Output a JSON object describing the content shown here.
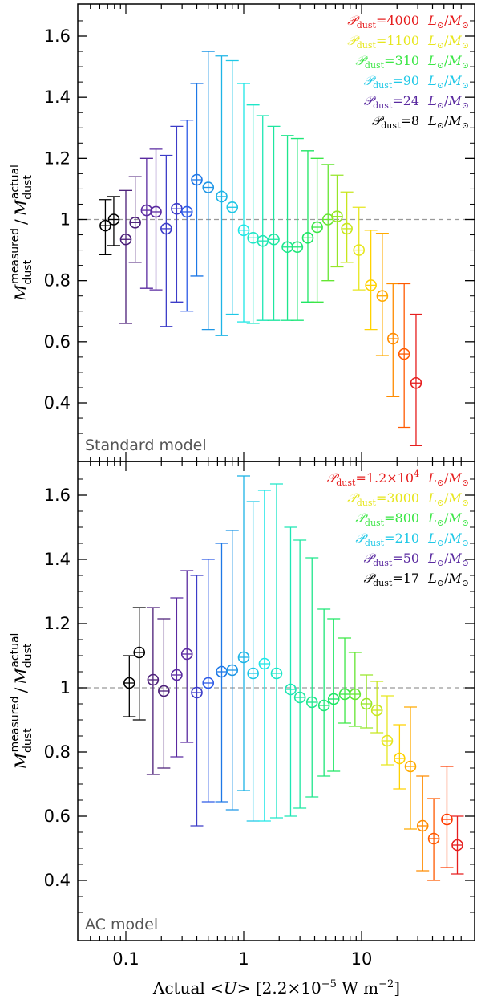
{
  "chart_data": [
    {
      "type": "scatter",
      "panel": "top",
      "panel_label": "Standard model",
      "ylabel": "M_dust^measured / M_dust^actual",
      "ylim": [
        0.22,
        1.68
      ],
      "xscale": "log",
      "xlim": [
        0.045,
        70
      ],
      "y_ticks": [
        "0.4",
        "0.6",
        "0.8",
        "1",
        "1.2",
        "1.4",
        "1.6"
      ],
      "reference_line": 1,
      "points": [
        {
          "x": 0.067,
          "y": 0.98,
          "lo": 0.885,
          "hi": 1.065,
          "color": "#000000"
        },
        {
          "x": 0.079,
          "y": 1.0,
          "lo": 0.915,
          "hi": 1.075,
          "color": "#000000"
        },
        {
          "x": 0.1,
          "y": 0.935,
          "lo": 0.66,
          "hi": 1.095,
          "color": "#4b1e78"
        },
        {
          "x": 0.12,
          "y": 0.99,
          "lo": 0.86,
          "hi": 1.14,
          "color": "#4b1e78"
        },
        {
          "x": 0.15,
          "y": 1.03,
          "lo": 0.775,
          "hi": 1.2,
          "color": "#5a2aa0"
        },
        {
          "x": 0.18,
          "y": 1.025,
          "lo": 0.77,
          "hi": 1.23,
          "color": "#5a2aa0"
        },
        {
          "x": 0.22,
          "y": 0.97,
          "lo": 0.65,
          "hi": 1.21,
          "color": "#3c3cc8"
        },
        {
          "x": 0.27,
          "y": 1.035,
          "lo": 0.73,
          "hi": 1.305,
          "color": "#3c3cc8"
        },
        {
          "x": 0.33,
          "y": 1.025,
          "lo": 0.7,
          "hi": 1.325,
          "color": "#2d5ae6"
        },
        {
          "x": 0.4,
          "y": 1.13,
          "lo": 0.815,
          "hi": 1.445,
          "color": "#1e78e6"
        },
        {
          "x": 0.5,
          "y": 1.105,
          "lo": 0.64,
          "hi": 1.55,
          "color": "#1e96e6"
        },
        {
          "x": 0.65,
          "y": 1.075,
          "lo": 0.62,
          "hi": 1.535,
          "color": "#1eb4e6"
        },
        {
          "x": 0.8,
          "y": 1.04,
          "lo": 0.69,
          "hi": 1.52,
          "color": "#1ec8e6"
        },
        {
          "x": 1.0,
          "y": 0.965,
          "lo": 0.665,
          "hi": 1.445,
          "color": "#1ee6e6"
        },
        {
          "x": 1.2,
          "y": 0.94,
          "lo": 0.66,
          "hi": 1.375,
          "color": "#1ee6c8"
        },
        {
          "x": 1.45,
          "y": 0.93,
          "lo": 0.67,
          "hi": 1.34,
          "color": "#1ee6b4"
        },
        {
          "x": 1.8,
          "y": 0.935,
          "lo": 0.67,
          "hi": 1.305,
          "color": "#1ee6a0"
        },
        {
          "x": 2.35,
          "y": 0.91,
          "lo": 0.67,
          "hi": 1.275,
          "color": "#1ee68c"
        },
        {
          "x": 2.85,
          "y": 0.91,
          "lo": 0.67,
          "hi": 1.265,
          "color": "#1ee678"
        },
        {
          "x": 3.5,
          "y": 0.94,
          "lo": 0.73,
          "hi": 1.225,
          "color": "#1ee664"
        },
        {
          "x": 4.2,
          "y": 0.975,
          "lo": 0.73,
          "hi": 1.2,
          "color": "#3ce646"
        },
        {
          "x": 5.2,
          "y": 1.0,
          "lo": 0.8,
          "hi": 1.18,
          "color": "#64e632"
        },
        {
          "x": 6.2,
          "y": 1.01,
          "lo": 0.845,
          "hi": 1.145,
          "color": "#96e628"
        },
        {
          "x": 7.5,
          "y": 0.97,
          "lo": 0.86,
          "hi": 1.09,
          "color": "#c8e61e"
        },
        {
          "x": 9.5,
          "y": 0.9,
          "lo": 0.77,
          "hi": 1.04,
          "color": "#e6e61e"
        },
        {
          "x": 12,
          "y": 0.785,
          "lo": 0.64,
          "hi": 0.965,
          "color": "#ffd200"
        },
        {
          "x": 15,
          "y": 0.75,
          "lo": 0.555,
          "hi": 0.955,
          "color": "#ffaa00"
        },
        {
          "x": 18.5,
          "y": 0.61,
          "lo": 0.42,
          "hi": 0.79,
          "color": "#ff8c00"
        },
        {
          "x": 23,
          "y": 0.56,
          "lo": 0.32,
          "hi": 0.79,
          "color": "#ff5a00"
        },
        {
          "x": 29,
          "y": 0.465,
          "lo": 0.26,
          "hi": 0.69,
          "color": "#e61e1e"
        }
      ],
      "legend": [
        {
          "value": "4000",
          "color": "#e61e1e"
        },
        {
          "value": "1100",
          "color": "#e6e61e"
        },
        {
          "value": "310",
          "color": "#3ce646"
        },
        {
          "value": "90",
          "color": "#1ec8e6"
        },
        {
          "value": "24",
          "color": "#5a2aa0"
        },
        {
          "value": "8",
          "color": "#000000"
        }
      ]
    },
    {
      "type": "scatter",
      "panel": "bottom",
      "panel_label": "AC model",
      "ylabel": "M_dust^measured / M_dust^actual",
      "ylim": [
        0.22,
        1.68
      ],
      "xscale": "log",
      "xlim": [
        0.045,
        70
      ],
      "y_ticks": [
        "0.4",
        "0.6",
        "0.8",
        "1",
        "1.2",
        "1.4",
        "1.6"
      ],
      "reference_line": 1,
      "points": [
        {
          "x": 0.107,
          "y": 1.015,
          "lo": 0.91,
          "hi": 1.1,
          "color": "#000000"
        },
        {
          "x": 0.13,
          "y": 1.11,
          "lo": 0.9,
          "hi": 1.25,
          "color": "#000000"
        },
        {
          "x": 0.17,
          "y": 1.025,
          "lo": 0.73,
          "hi": 1.25,
          "color": "#4b1e78"
        },
        {
          "x": 0.21,
          "y": 0.99,
          "lo": 0.75,
          "hi": 1.215,
          "color": "#4b1e78"
        },
        {
          "x": 0.27,
          "y": 1.04,
          "lo": 0.785,
          "hi": 1.28,
          "color": "#5a2aa0"
        },
        {
          "x": 0.33,
          "y": 1.105,
          "lo": 0.83,
          "hi": 1.365,
          "color": "#5a2aa0"
        },
        {
          "x": 0.4,
          "y": 0.985,
          "lo": 0.57,
          "hi": 1.35,
          "color": "#3c3cc8"
        },
        {
          "x": 0.5,
          "y": 1.015,
          "lo": 0.645,
          "hi": 1.4,
          "color": "#2d5ae6"
        },
        {
          "x": 0.65,
          "y": 1.05,
          "lo": 0.645,
          "hi": 1.45,
          "color": "#1e78e6"
        },
        {
          "x": 0.8,
          "y": 1.055,
          "lo": 0.62,
          "hi": 1.49,
          "color": "#1e96e6"
        },
        {
          "x": 1.0,
          "y": 1.095,
          "lo": 0.68,
          "hi": 1.66,
          "color": "#1eb4e6"
        },
        {
          "x": 1.2,
          "y": 1.045,
          "lo": 0.585,
          "hi": 1.58,
          "color": "#1ec8e6"
        },
        {
          "x": 1.5,
          "y": 1.075,
          "lo": 0.585,
          "hi": 1.615,
          "color": "#1ee6e6"
        },
        {
          "x": 1.9,
          "y": 1.045,
          "lo": 0.595,
          "hi": 1.635,
          "color": "#1ee6c8"
        },
        {
          "x": 2.5,
          "y": 0.995,
          "lo": 0.6,
          "hi": 1.5,
          "color": "#1ee6b4"
        },
        {
          "x": 3.0,
          "y": 0.97,
          "lo": 0.625,
          "hi": 1.46,
          "color": "#1ee6a0"
        },
        {
          "x": 3.8,
          "y": 0.955,
          "lo": 0.66,
          "hi": 1.405,
          "color": "#1ee68c"
        },
        {
          "x": 4.8,
          "y": 0.945,
          "lo": 0.725,
          "hi": 1.245,
          "color": "#1ee678"
        },
        {
          "x": 5.8,
          "y": 0.965,
          "lo": 0.74,
          "hi": 1.215,
          "color": "#1ee664"
        },
        {
          "x": 7.2,
          "y": 0.98,
          "lo": 0.89,
          "hi": 1.155,
          "color": "#3ce646"
        },
        {
          "x": 8.8,
          "y": 0.98,
          "lo": 0.88,
          "hi": 1.11,
          "color": "#64e632"
        },
        {
          "x": 11,
          "y": 0.95,
          "lo": 0.875,
          "hi": 1.04,
          "color": "#96e628"
        },
        {
          "x": 13.5,
          "y": 0.93,
          "lo": 0.86,
          "hi": 1.02,
          "color": "#c8e61e"
        },
        {
          "x": 16.5,
          "y": 0.835,
          "lo": 0.76,
          "hi": 0.975,
          "color": "#e6e61e"
        },
        {
          "x": 21,
          "y": 0.78,
          "lo": 0.685,
          "hi": 0.885,
          "color": "#ffd200"
        },
        {
          "x": 26,
          "y": 0.755,
          "lo": 0.56,
          "hi": 0.94,
          "color": "#ffaa00"
        },
        {
          "x": 33,
          "y": 0.57,
          "lo": 0.43,
          "hi": 0.725,
          "color": "#ff8c00"
        },
        {
          "x": 41,
          "y": 0.53,
          "lo": 0.4,
          "hi": 0.655,
          "color": "#ff5a00"
        },
        {
          "x": 53,
          "y": 0.59,
          "lo": 0.44,
          "hi": 0.755,
          "color": "#ff3c00"
        },
        {
          "x": 65,
          "y": 0.51,
          "lo": 0.42,
          "hi": 0.6,
          "color": "#e61e1e"
        }
      ],
      "legend": [
        {
          "value": "1.2×10",
          "sup": "4",
          "color": "#e61e1e"
        },
        {
          "value": "3000",
          "color": "#e6e61e"
        },
        {
          "value": "800",
          "color": "#3ce646"
        },
        {
          "value": "210",
          "color": "#1ec8e6"
        },
        {
          "value": "50",
          "color": "#5a2aa0"
        },
        {
          "value": "17",
          "color": "#000000"
        }
      ]
    }
  ],
  "x_axis": {
    "title_prefix": "Actual",
    "title_symbol": "<U>",
    "title_units": "[2.2×10",
    "title_units_exp": "−5",
    "title_units_tail": " W m",
    "title_units_exp2": "−2",
    "title_units_close": "]",
    "tick_labels": [
      {
        "x": 0.1,
        "label": "0.1"
      },
      {
        "x": 1,
        "label": "1"
      },
      {
        "x": 10,
        "label": "10"
      }
    ]
  },
  "ylabel_parts": {
    "main": "M",
    "sub1": "dust",
    "sup1": "measured",
    "slash": "/",
    "sub2": "dust",
    "sup2": "actual"
  },
  "legend_template": {
    "symbol": "𝒫",
    "sub": "dust",
    "eq": "=",
    "unit_L": "L",
    "unit_sun": "⊙",
    "unit_slash": "/",
    "unit_M": "M"
  }
}
